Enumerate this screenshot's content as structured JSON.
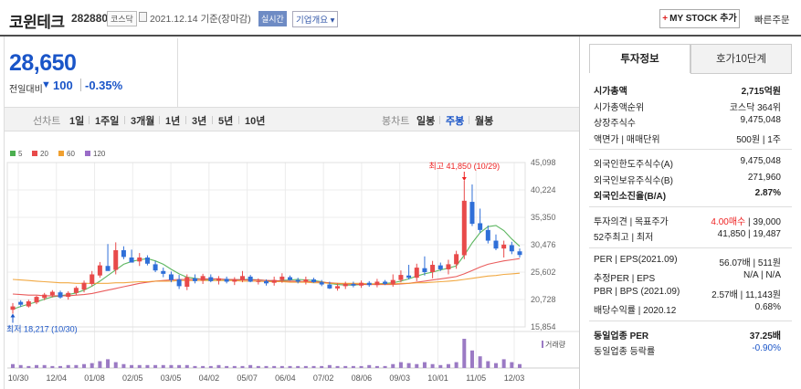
{
  "header": {
    "title": "코윈테크",
    "code": "282880",
    "market": "코스닥",
    "date": "2021.12.14 기준(장마감)",
    "realtime_label": "실시간",
    "company_info_label": "기업개요 ▾",
    "my_stock_plus": "+",
    "my_stock_label": "MY STOCK 추가",
    "quick_order_label": "빠른주문"
  },
  "price": {
    "current": "28,650",
    "change_label": "전일대비",
    "change_arrow": "▼",
    "change_value": "100",
    "change_percent": "-0.35%"
  },
  "period_bar": {
    "line_chart_label": "선차트",
    "periods": [
      "1일",
      "1주일",
      "3개월",
      "1년",
      "3년",
      "5년",
      "10년"
    ],
    "candle_chart_label": "봉차트",
    "candle_periods": [
      "일봉",
      "주봉",
      "월봉"
    ],
    "active_candle": "주봉"
  },
  "chart_data": {
    "type": "candlestick",
    "legend": [
      "5",
      "20",
      "60",
      "120"
    ],
    "legend_colors": [
      "#4caf50",
      "#e84a4a",
      "#f0a030",
      "#9a6cc8"
    ],
    "y_ticks": [
      "45,098",
      "40,224",
      "35,350",
      "30,476",
      "25,602",
      "20,728",
      "15,854"
    ],
    "ylim": [
      15854,
      45098
    ],
    "x_ticks": [
      "10/30",
      "12/04",
      "01/08",
      "02/05",
      "03/05",
      "04/02",
      "05/07",
      "06/04",
      "07/02",
      "08/06",
      "09/03",
      "10/01",
      "11/05",
      "12/03"
    ],
    "high_label": "최고 41,850 (10/29)",
    "low_label": "최저 18,217 (10/30)",
    "volume_label": "거래량",
    "up_color": "#e84a4a",
    "down_color": "#2f6fd8",
    "candles": [
      [
        18900,
        18217,
        19500,
        20100,
        "u"
      ],
      [
        19800,
        19400,
        20300,
        20600,
        "d"
      ],
      [
        19500,
        19300,
        20400,
        20700,
        "u"
      ],
      [
        20200,
        19900,
        21200,
        21400,
        "u"
      ],
      [
        21000,
        20600,
        21600,
        21900,
        "u"
      ],
      [
        21500,
        21100,
        22100,
        22400,
        "u"
      ],
      [
        22000,
        20900,
        21100,
        22300,
        "d"
      ],
      [
        21200,
        20700,
        21900,
        22200,
        "u"
      ],
      [
        21900,
        21500,
        22800,
        23100,
        "u"
      ],
      [
        22500,
        22000,
        23700,
        24100,
        "u"
      ],
      [
        23500,
        23100,
        25200,
        25800,
        "u"
      ],
      [
        25000,
        24600,
        26800,
        27400,
        "u"
      ],
      [
        26700,
        26100,
        25800,
        30600,
        "d"
      ],
      [
        26000,
        25200,
        29500,
        30900,
        "u"
      ],
      [
        29500,
        27900,
        28300,
        30200,
        "d"
      ],
      [
        28200,
        27600,
        27300,
        29600,
        "d"
      ],
      [
        27500,
        26700,
        28200,
        29000,
        "u"
      ],
      [
        28200,
        26800,
        27100,
        28600,
        "d"
      ],
      [
        27000,
        25600,
        25900,
        27600,
        "d"
      ],
      [
        25800,
        24700,
        25300,
        26400,
        "d"
      ],
      [
        25200,
        23800,
        24200,
        25700,
        "d"
      ],
      [
        24300,
        22600,
        23100,
        25100,
        "d"
      ],
      [
        23000,
        22400,
        24700,
        25200,
        "u"
      ],
      [
        24500,
        23600,
        24000,
        25200,
        "d"
      ],
      [
        24100,
        23500,
        24900,
        25300,
        "u"
      ],
      [
        24700,
        23800,
        24000,
        25200,
        "d"
      ],
      [
        24100,
        23400,
        24500,
        24900,
        "u"
      ],
      [
        24400,
        23600,
        23900,
        24800,
        "d"
      ],
      [
        23900,
        23300,
        24300,
        24700,
        "u"
      ],
      [
        24200,
        23800,
        24900,
        25800,
        "u"
      ],
      [
        24800,
        23800,
        23900,
        25100,
        "d"
      ],
      [
        23900,
        23400,
        24000,
        24500,
        "u"
      ],
      [
        24000,
        23200,
        23600,
        24300,
        "d"
      ],
      [
        23700,
        23200,
        24200,
        24800,
        "u"
      ],
      [
        24200,
        23700,
        24800,
        25400,
        "u"
      ],
      [
        24700,
        24100,
        24200,
        25000,
        "d"
      ],
      [
        24200,
        23600,
        23900,
        24600,
        "d"
      ],
      [
        23900,
        23400,
        24300,
        24800,
        "u"
      ],
      [
        24300,
        23700,
        23800,
        24600,
        "d"
      ],
      [
        23800,
        23100,
        23400,
        24200,
        "d"
      ],
      [
        23400,
        22600,
        22700,
        23900,
        "d"
      ],
      [
        22700,
        22300,
        23100,
        23600,
        "u"
      ],
      [
        23100,
        22600,
        23500,
        23900,
        "u"
      ],
      [
        23500,
        22900,
        23200,
        23900,
        "d"
      ],
      [
        23200,
        22800,
        23700,
        24100,
        "u"
      ],
      [
        23700,
        23000,
        23300,
        24000,
        "d"
      ],
      [
        23300,
        22900,
        23900,
        24400,
        "u"
      ],
      [
        23900,
        23300,
        23500,
        24200,
        "d"
      ],
      [
        23500,
        23000,
        24200,
        25200,
        "u"
      ],
      [
        24200,
        23800,
        25100,
        25900,
        "u"
      ],
      [
        25000,
        24300,
        24600,
        26900,
        "d"
      ],
      [
        24600,
        24000,
        26400,
        27100,
        "u"
      ],
      [
        26300,
        25000,
        25600,
        28400,
        "d"
      ],
      [
        25600,
        24500,
        26900,
        27600,
        "u"
      ],
      [
        26800,
        25800,
        26100,
        27300,
        "d"
      ],
      [
        26100,
        25200,
        27000,
        27800,
        "u"
      ],
      [
        27000,
        26200,
        28800,
        29400,
        "u"
      ],
      [
        28600,
        27900,
        38300,
        41850,
        "u"
      ],
      [
        38100,
        33800,
        34200,
        41200,
        "d"
      ],
      [
        34300,
        32600,
        33100,
        36900,
        "d"
      ],
      [
        33100,
        30700,
        31200,
        33900,
        "d"
      ],
      [
        31200,
        29500,
        29800,
        32300,
        "d"
      ],
      [
        29800,
        28200,
        30500,
        31200,
        "u"
      ],
      [
        30400,
        28800,
        29300,
        31000,
        "d"
      ],
      [
        29300,
        28200,
        28650,
        29800,
        "d"
      ]
    ],
    "ma5": [
      19000,
      19500,
      19900,
      20300,
      20800,
      21200,
      21400,
      21600,
      21900,
      22400,
      23100,
      24000,
      25000,
      26000,
      27000,
      27500,
      27800,
      28000,
      27600,
      27000,
      26100,
      25300,
      24700,
      24500,
      24300,
      24200,
      24100,
      24200,
      24200,
      24300,
      24300,
      24200,
      24100,
      24000,
      24100,
      24200,
      24300,
      24200,
      24100,
      23900,
      23600,
      23400,
      23300,
      23300,
      23400,
      23500,
      23500,
      23600,
      23700,
      24000,
      24400,
      24900,
      25300,
      25600,
      26000,
      26300,
      26700,
      28600,
      30800,
      32600,
      33700,
      33900,
      33000,
      31500,
      30200
    ],
    "ma20": [
      21700,
      21600,
      21500,
      21500,
      21400,
      21400,
      21400,
      21400,
      21500,
      21600,
      21800,
      22100,
      22400,
      22700,
      23000,
      23300,
      23600,
      23800,
      24000,
      24100,
      24200,
      24300,
      24300,
      24300,
      24400,
      24400,
      24400,
      24300,
      24300,
      24200,
      24200,
      24200,
      24100,
      24100,
      24000,
      24000,
      24000,
      23900,
      23900,
      23800,
      23700,
      23600,
      23500,
      23500,
      23400,
      23400,
      23400,
      23400,
      23400,
      23500,
      23600,
      23800,
      24000,
      24200,
      24400,
      24600,
      24800,
      25300,
      25900,
      26500,
      27000,
      27300,
      27600,
      27800,
      28000
    ],
    "ma60": [
      24300,
      24200,
      24100,
      24000,
      23900,
      23800,
      23700,
      23700,
      23600,
      23600,
      23600,
      23600,
      23600,
      23700,
      23700,
      23800,
      23900,
      23900,
      24000,
      24000,
      24000,
      24100,
      24100,
      24100,
      24100,
      24100,
      24100,
      24100,
      24100,
      24000,
      24000,
      24000,
      23900,
      23900,
      23900,
      23800,
      23800,
      23800,
      23700,
      23700,
      23600,
      23600,
      23600,
      23600,
      23600,
      23500,
      23500,
      23500,
      23500,
      23600,
      23600,
      23700,
      23700,
      23800,
      23900,
      24000,
      24100,
      24300,
      24500,
      24700,
      24900,
      25000,
      25200,
      25300,
      25400
    ],
    "volume": [
      4,
      3,
      2,
      3,
      3,
      2,
      2,
      3,
      3,
      4,
      5,
      7,
      9,
      6,
      4,
      3,
      3,
      3,
      3,
      3,
      3,
      3,
      3,
      2,
      2,
      2,
      3,
      2,
      2,
      2,
      3,
      2,
      2,
      2,
      2,
      2,
      2,
      2,
      2,
      2,
      3,
      2,
      2,
      2,
      2,
      3,
      2,
      2,
      4,
      6,
      5,
      4,
      6,
      4,
      3,
      4,
      6,
      30,
      18,
      12,
      7,
      5,
      9,
      6,
      4
    ]
  },
  "right_panel": {
    "tabs": [
      "투자정보",
      "호가10단계"
    ],
    "rows1": [
      {
        "k": "시가총액",
        "v": "2,715억원",
        "bold": true
      },
      {
        "k": "시가총액순위",
        "v": "코스닥 364위"
      },
      {
        "k": "상장주식수",
        "v": "9,475,048"
      },
      {
        "k": "액면가 | 매매단위",
        "v": "500원 | 1주"
      }
    ],
    "rows2": [
      {
        "k": "외국인한도주식수(A)",
        "v": "9,475,048"
      },
      {
        "k": "외국인보유주식수(B)",
        "v": "271,960"
      },
      {
        "k": "외국인소진율(B/A)",
        "v": "2.87%",
        "bold": true
      }
    ],
    "rows3": [
      {
        "k": "투자의견 | 목표주가",
        "v_red": "4.00매수",
        "v": "39,000"
      },
      {
        "k": "52주최고 | 최저",
        "v": "41,850 | 19,487"
      }
    ],
    "rows4": [
      {
        "k": "PER | EPS(2021.09)",
        "v": "56.07배 | 511원"
      },
      {
        "k": "추정PER | EPS",
        "v": "N/A | N/A"
      },
      {
        "k": "PBR | BPS (2021.09)",
        "v": "2.57배 | 11,143원"
      },
      {
        "k": "배당수익률 | 2020.12",
        "v": "0.68%"
      }
    ],
    "rows5": [
      {
        "k": "동일업종 PER",
        "v": "37.25배",
        "bold": true
      },
      {
        "k": "동일업종 등락률",
        "v": "-0.90%",
        "blue": true
      }
    ]
  }
}
